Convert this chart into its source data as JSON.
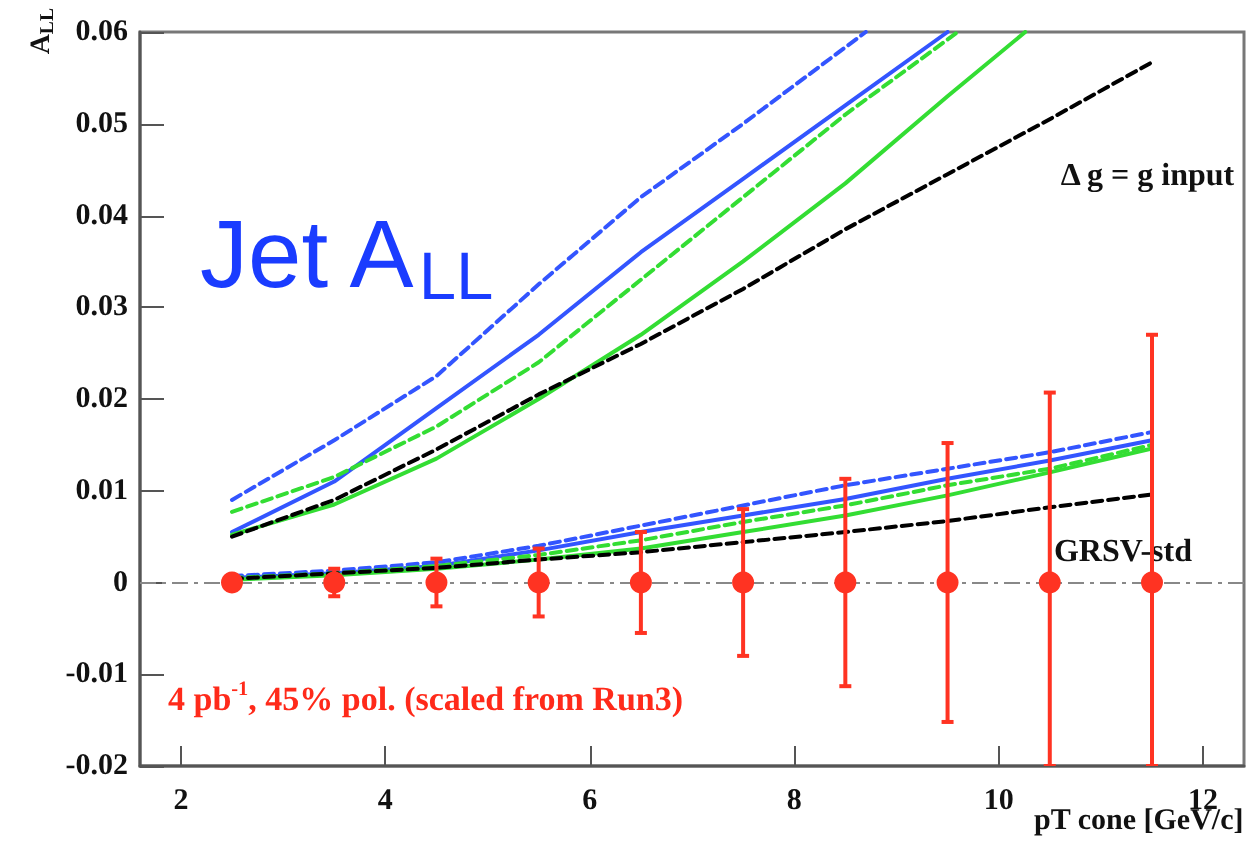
{
  "chart_data": {
    "type": "scatter",
    "xlabel": "pT cone [GeV/c]",
    "ylabel": "A$_{LL}$",
    "xlim": [
      1.6,
      12.4
    ],
    "xticks": [
      2,
      4,
      6,
      8,
      10,
      12
    ],
    "ylim": [
      -0.02,
      0.06
    ],
    "yticks": [
      -0.02,
      -0.01,
      0,
      0.01,
      0.02,
      0.03,
      0.04,
      0.05,
      0.06
    ],
    "grid": false,
    "marker": "circle",
    "x": [
      2.5,
      3.5,
      4.5,
      5.5,
      6.5,
      7.5,
      8.5,
      9.5,
      10.5,
      11.5
    ],
    "series": [
      {
        "color": "#ff3322",
        "values": [
          0,
          0,
          0,
          0,
          0,
          0,
          0,
          0,
          0,
          0
        ],
        "errors": [
          null,
          0.0015,
          0.0026,
          0.0037,
          0.0055,
          0.008,
          0.0113,
          0.0152,
          [
            -0.02,
            0.0207
          ],
          [
            -0.02,
            0.027
          ]
        ]
      },
      {
        "type": "line",
        "line_style": "dashed",
        "marker": "none",
        "color": "#3355ff",
        "x": [
          2.5,
          3.5,
          4.5,
          5.5,
          6.5,
          7.5,
          8.7
        ],
        "values": [
          0.009,
          0.0155,
          0.0225,
          0.0325,
          0.042,
          0.05,
          0.06
        ]
      },
      {
        "type": "line",
        "line_style": "solid",
        "marker": "none",
        "color": "#3355ff",
        "x": [
          2.5,
          3.5,
          4.5,
          5.5,
          6.5,
          7.5,
          8.5,
          9.5
        ],
        "values": [
          0.0055,
          0.011,
          0.019,
          0.027,
          0.036,
          0.044,
          0.052,
          0.06
        ]
      },
      {
        "type": "line",
        "line_style": "dashed",
        "marker": "none",
        "color": "#33dd33",
        "x": [
          2.5,
          3.5,
          4.5,
          5.5,
          6.5,
          7.5,
          8.5,
          9.6
        ],
        "values": [
          0.0077,
          0.0115,
          0.017,
          0.024,
          0.033,
          0.042,
          0.051,
          0.06
        ]
      },
      {
        "type": "line",
        "line_style": "solid",
        "marker": "none",
        "color": "#33dd33",
        "x": [
          2.5,
          3.5,
          4.5,
          5.5,
          6.5,
          7.5,
          8.5,
          9.5,
          10.26
        ],
        "values": [
          0.0052,
          0.0085,
          0.0135,
          0.02,
          0.027,
          0.035,
          0.0435,
          0.053,
          0.06
        ]
      },
      {
        "type": "line",
        "line_style": "dashed",
        "marker": "none",
        "color": "#000000",
        "x": [
          2.5,
          3.5,
          4.5,
          5.5,
          6.5,
          7.5,
          8.5,
          9.5,
          10.5,
          11.5
        ],
        "values": [
          0.005,
          0.009,
          0.0145,
          0.0205,
          0.026,
          0.032,
          0.0385,
          0.0445,
          0.0505,
          0.0567
        ]
      },
      {
        "type": "line",
        "line_style": "dashed",
        "marker": "none",
        "color": "#3355ff",
        "values": [
          0.0007,
          0.0013,
          0.0022,
          0.004,
          0.0062,
          0.0084,
          0.0106,
          0.0124,
          0.0142,
          0.0164
        ]
      },
      {
        "type": "line",
        "line_style": "solid",
        "marker": "none",
        "color": "#3355ff",
        "values": [
          0.0005,
          0.001,
          0.0018,
          0.0035,
          0.0055,
          0.0073,
          0.0091,
          0.0113,
          0.0133,
          0.0155
        ]
      },
      {
        "type": "line",
        "line_style": "dashed",
        "marker": "none",
        "color": "#33dd33",
        "values": [
          0.0005,
          0.001,
          0.0018,
          0.003,
          0.0046,
          0.0066,
          0.0084,
          0.0106,
          0.0124,
          0.015
        ]
      },
      {
        "type": "line",
        "line_style": "solid",
        "marker": "none",
        "color": "#33dd33",
        "values": [
          0.0003,
          0.0008,
          0.0015,
          0.0025,
          0.0037,
          0.0055,
          0.0073,
          0.0095,
          0.012,
          0.0146
        ]
      },
      {
        "type": "line",
        "line_style": "dashed",
        "marker": "none",
        "color": "#000000",
        "values": [
          0.0004,
          0.001,
          0.0016,
          0.0025,
          0.0033,
          0.0044,
          0.0055,
          0.0067,
          0.0082,
          0.0096
        ]
      }
    ],
    "ref_lines": [
      {
        "axis": "y",
        "value": 0,
        "color": "#888888",
        "line_style": "dashed"
      }
    ],
    "annotations": [
      "Jet A$_{LL}$",
      "Δ g = g input",
      "GRSV-std",
      "4 pb$^{-1}$, 45% pol. (scaled from Run3)"
    ]
  }
}
